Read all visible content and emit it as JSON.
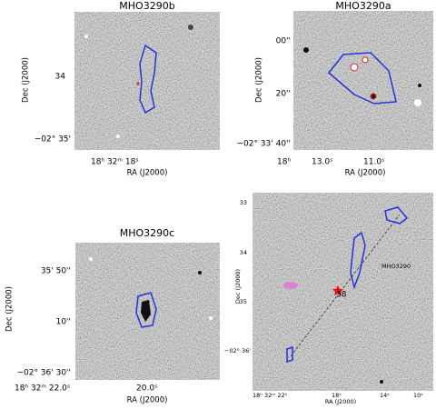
{
  "panels": [
    {
      "title": "MHO3290b",
      "y_label": "Dec (J2000)",
      "x_label": "RA (J2000)",
      "y_ticks": [
        "34",
        "−02° 35'"
      ],
      "x_ticks": [
        "18ʰ 32ᵐ 18ˢ"
      ]
    },
    {
      "title": "MHO3290a",
      "y_label": "Dec (J2000)",
      "x_label": "RA (J2000)",
      "y_ticks": [
        "00''",
        "20''",
        "−02° 33' 40''"
      ],
      "x_ticks": [
        "18ʰ",
        "13.0ˢ",
        "11.0ˢ"
      ]
    },
    {
      "title": "MHO3290c",
      "y_label": "Dec (J2000)",
      "x_label": "RA (J2000)",
      "y_ticks": [
        "35' 50''",
        "10''",
        "−02° 36' 30''"
      ],
      "x_ticks": [
        "18ʰ 32ᵐ 22.0ˢ",
        "20.0ˢ"
      ]
    },
    {
      "y_label": "Dec (J2000)",
      "x_label": "RA (J2000)",
      "y_ticks": [
        "33",
        "34",
        "35",
        "−02° 36'"
      ],
      "x_ticks": [
        "18ʰ 32ᵐ 22ˢ",
        "18ˢ",
        "14ˢ",
        "10ˢ"
      ]
    }
  ],
  "annotations": [
    "MHO3290",
    "38"
  ]
}
